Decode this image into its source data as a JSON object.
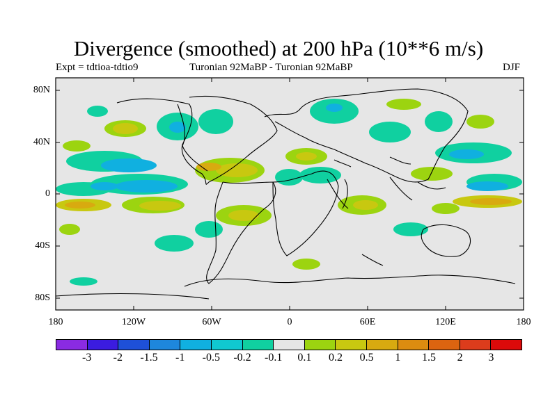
{
  "header": {
    "title": "Divergence (smoothed) at 200 hPa (10**6 m/s)",
    "left": "Expt = tdtioa-tdtio9",
    "center": "Turonian  92MaBP - Turonian  92MaBP",
    "right": "DJF"
  },
  "axes": {
    "lat_labels": [
      "80N",
      "40N",
      "0",
      "40S",
      "80S"
    ],
    "lat_values": [
      80,
      40,
      0,
      -40,
      -80
    ],
    "lon_labels": [
      "180",
      "120W",
      "60W",
      "0",
      "60E",
      "120E",
      "180"
    ],
    "lon_values": [
      -180,
      -120,
      -60,
      0,
      60,
      120,
      180
    ]
  },
  "colorbar": {
    "labels": [
      "-3",
      "-2",
      "-1.5",
      "-1",
      "-0.5",
      "-0.2",
      "-0.1",
      "0.1",
      "0.2",
      "0.5",
      "1",
      "1.5",
      "2",
      "3"
    ],
    "colors": [
      "#8a2be2",
      "#3b1ce0",
      "#1e50d8",
      "#1e87dc",
      "#10b0e0",
      "#10c8d0",
      "#10d0a0",
      "#e6e6e6",
      "#9cd410",
      "#c8c810",
      "#d8aa10",
      "#dc8c10",
      "#dc6410",
      "#dc3c1c",
      "#dc0a0a"
    ]
  },
  "colors": {
    "background": "#e6e6e6",
    "coast": "#000000"
  }
}
